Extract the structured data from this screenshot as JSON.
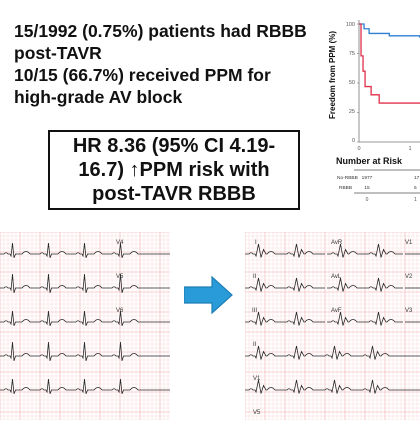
{
  "stats": [
    "15/1992 (0.75%) patients had RBBB",
    "post-TAVR",
    "10/15 (66.7%) received PPM for",
    "high-grade AV block"
  ],
  "hr_box": {
    "lines": [
      "HR 8.36 (95% CI 4.19-",
      "16.7) ↑PPM risk with",
      "post-TAVR RBBB"
    ]
  },
  "km_chart": {
    "ylabel": "Freedom from PPM (%)",
    "y_ticks": [
      "100",
      "75",
      "50",
      "25",
      "0"
    ],
    "x_ticks": [
      "0",
      "1"
    ],
    "risk_title": "Number at Risk",
    "risk_rows": [
      {
        "label": "No-RBBB",
        "n0": "1977",
        "n1": "17"
      },
      {
        "label": "RBBB",
        "n0": "15",
        "n1": "5"
      }
    ],
    "risk_x_ticks": [
      "0",
      "1"
    ],
    "colors": {
      "no_rbbb": "#2e7fd0",
      "rbbb": "#e0304a"
    }
  },
  "chart_data": {
    "type": "line",
    "ylabel": "Freedom from PPM (%)",
    "ylim": [
      0,
      100
    ],
    "series": [
      {
        "name": "No-RBBB",
        "x": [
          0,
          0.05,
          0.1,
          0.3,
          0.6,
          1.0
        ],
        "y": [
          100,
          96,
          92,
          90,
          89,
          89
        ]
      },
      {
        "name": "RBBB",
        "x": [
          0,
          0.02,
          0.04,
          0.06,
          0.12,
          0.2,
          0.45,
          1.0
        ],
        "y": [
          100,
          73,
          60,
          47,
          40,
          33,
          33,
          33
        ]
      }
    ]
  },
  "ecg_left": {
    "leads": [
      "V4",
      "V5",
      "V6"
    ],
    "grid_color": "#f1a7a7",
    "trace_color": "#2a2a2a"
  },
  "ecg_right": {
    "leads_left": [
      "I",
      "II",
      "III"
    ],
    "leads_mid": [
      "AvR",
      "AvL",
      "AvF"
    ],
    "leads_right": [
      "V1",
      "V2",
      "V3"
    ],
    "leads_lower": [
      "II",
      "V1",
      "V5"
    ]
  },
  "arrow_color": "#2a9bd9"
}
